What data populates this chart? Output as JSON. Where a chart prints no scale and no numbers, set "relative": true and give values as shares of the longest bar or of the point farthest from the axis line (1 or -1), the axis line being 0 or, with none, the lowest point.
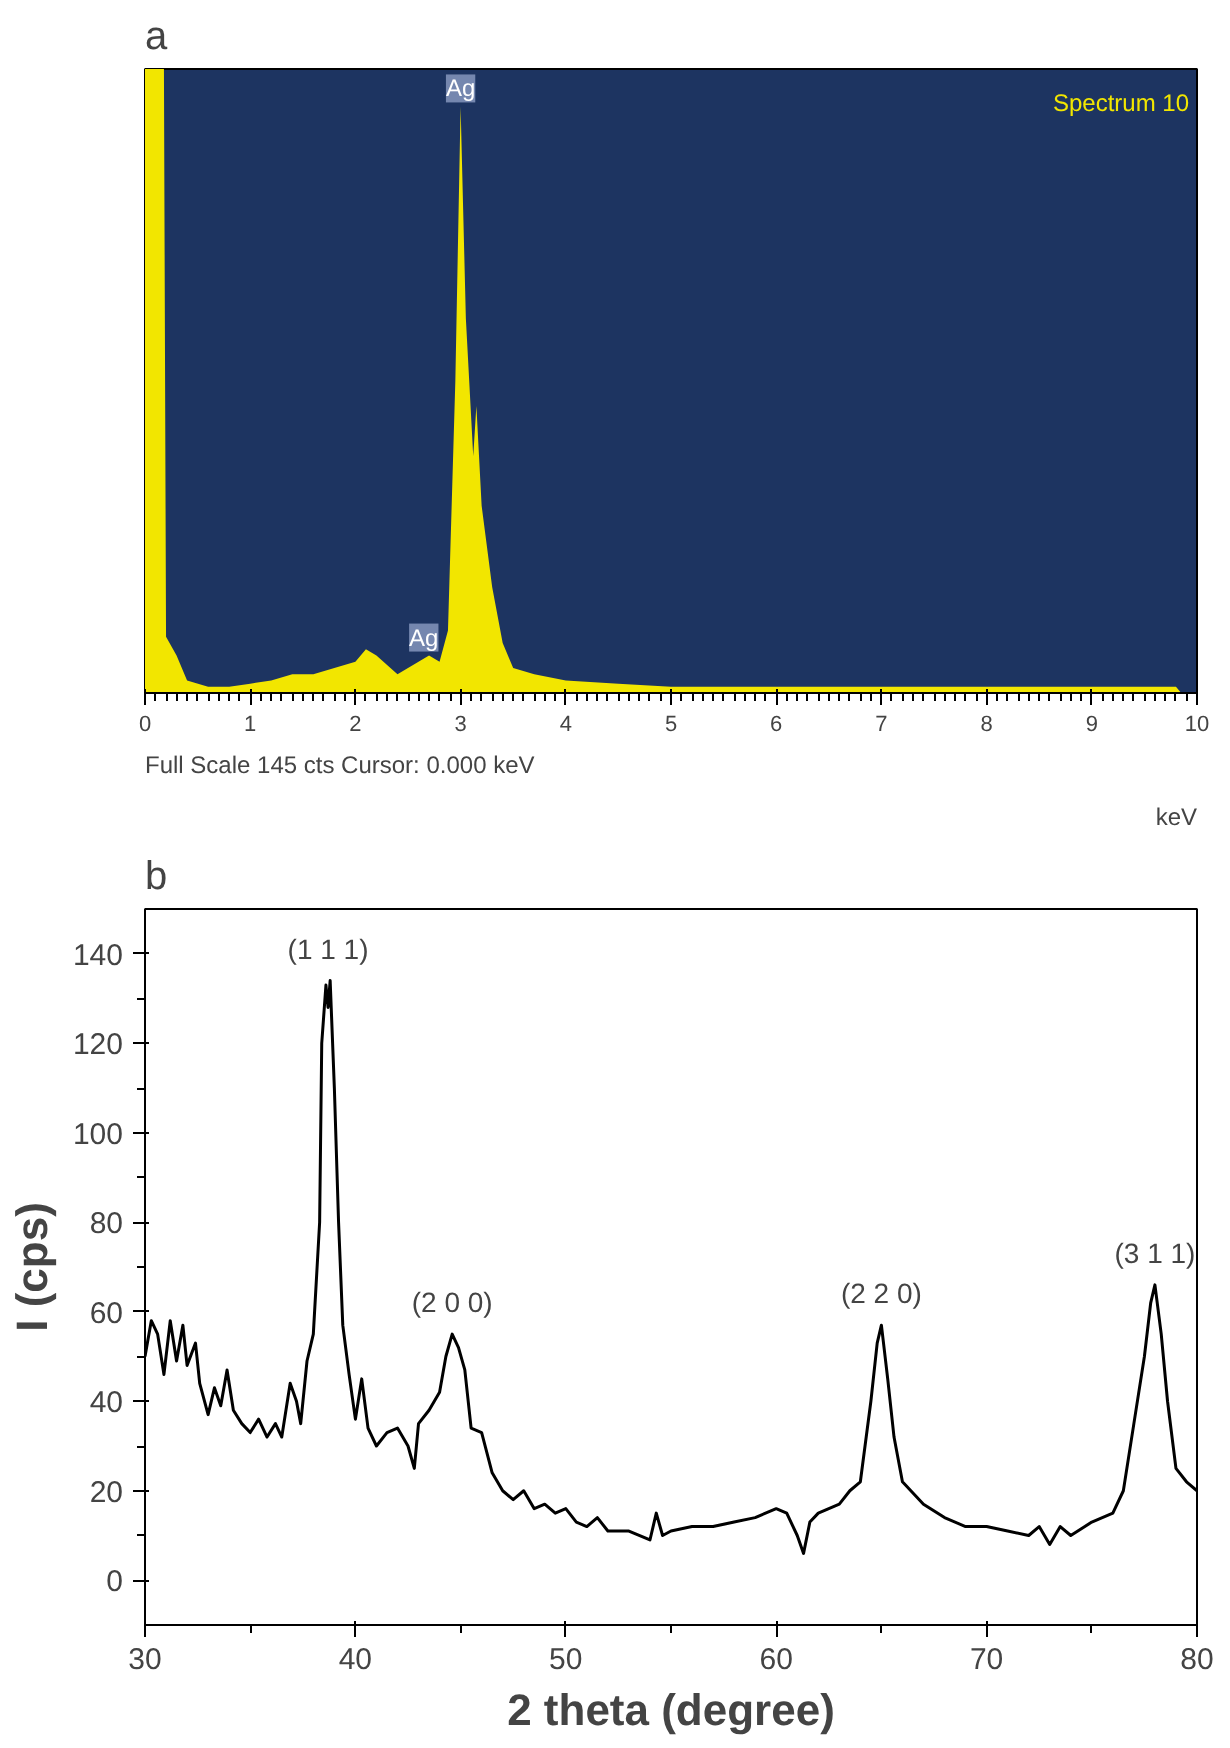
{
  "chart_data": [
    {
      "type": "area",
      "title": "a",
      "xlabel": "keV",
      "relative": true,
      "color": "#f2e600",
      "xlim": [
        0,
        10
      ],
      "xticks": [
        0,
        1,
        2,
        3,
        4,
        5,
        6,
        7,
        8,
        9,
        10
      ],
      "x": [
        0.0,
        0.18,
        0.2,
        0.3,
        0.4,
        0.6,
        0.8,
        1.0,
        1.2,
        1.4,
        1.6,
        1.8,
        2.0,
        2.1,
        2.2,
        2.4,
        2.6,
        2.7,
        2.8,
        2.88,
        2.95,
        3.0,
        3.05,
        3.12,
        3.15,
        3.2,
        3.3,
        3.4,
        3.5,
        3.7,
        4.0,
        4.5,
        5.0,
        6.0,
        7.0,
        8.0,
        9.0,
        9.8,
        9.85
      ],
      "values": [
        1,
        1,
        0.09,
        0.06,
        0.02,
        0.01,
        0.01,
        0.015,
        0.02,
        0.03,
        0.03,
        0.04,
        0.05,
        0.07,
        0.06,
        0.03,
        0.05,
        0.06,
        0.05,
        0.1,
        0.5,
        0.94,
        0.6,
        0.38,
        0.46,
        0.3,
        0.17,
        0.08,
        0.04,
        0.03,
        0.02,
        0.015,
        0.01,
        0.01,
        0.01,
        0.01,
        0.01,
        0.01,
        0
      ],
      "annotations": [
        {
          "text": "Ag",
          "x": 3.0,
          "y": 0.94
        },
        {
          "text": "Ag",
          "x": 2.65,
          "y": 0.06
        },
        "Spectrum 10",
        "Full Scale 145 cts  Cursor: 0.000 keV"
      ]
    },
    {
      "type": "line",
      "title": "b",
      "xlabel": "2 theta (degree)",
      "ylabel": "I (cps)",
      "color": "#000000",
      "xlim": [
        30,
        80
      ],
      "ylim": [
        -10,
        150
      ],
      "xticks": [
        30,
        40,
        50,
        60,
        70,
        80
      ],
      "yticks": [
        0,
        20,
        40,
        60,
        80,
        100,
        120,
        140
      ],
      "x": [
        30.0,
        30.3,
        30.6,
        30.9,
        31.2,
        31.5,
        31.8,
        32.0,
        32.4,
        32.6,
        33.0,
        33.3,
        33.6,
        33.9,
        34.2,
        34.6,
        35.0,
        35.4,
        35.8,
        36.2,
        36.5,
        36.9,
        37.2,
        37.4,
        37.7,
        38.0,
        38.3,
        38.4,
        38.6,
        38.7,
        38.8,
        39.0,
        39.2,
        39.4,
        39.7,
        40.0,
        40.3,
        40.6,
        41.0,
        41.5,
        42.0,
        42.5,
        42.8,
        43.0,
        43.5,
        44.0,
        44.3,
        44.6,
        44.9,
        45.2,
        45.5,
        46.0,
        46.5,
        47.0,
        47.5,
        48.0,
        48.5,
        49.0,
        49.5,
        50.0,
        50.5,
        51.0,
        51.5,
        52.0,
        53.0,
        54.0,
        54.3,
        54.6,
        55.0,
        56.0,
        57.0,
        58.0,
        59.0,
        60.0,
        60.5,
        61.0,
        61.3,
        61.6,
        62.0,
        63.0,
        63.5,
        64.0,
        64.5,
        64.8,
        65.0,
        65.3,
        65.6,
        66.0,
        67.0,
        68.0,
        69.0,
        70.0,
        71.0,
        72.0,
        72.5,
        73.0,
        73.5,
        74.0,
        75.0,
        76.0,
        76.5,
        77.0,
        77.5,
        77.8,
        78.0,
        78.3,
        78.6,
        79.0,
        79.5,
        80.0
      ],
      "values": [
        50,
        58,
        55,
        46,
        58,
        49,
        57,
        48,
        53,
        44,
        37,
        43,
        39,
        47,
        38,
        35,
        33,
        36,
        32,
        35,
        32,
        44,
        40,
        35,
        49,
        55,
        80,
        120,
        133,
        128,
        134,
        110,
        80,
        57,
        46,
        36,
        45,
        34,
        30,
        33,
        34,
        30,
        25,
        35,
        38,
        42,
        50,
        55,
        52,
        47,
        34,
        33,
        24,
        20,
        18,
        20,
        16,
        17,
        15,
        16,
        13,
        12,
        14,
        11,
        11,
        9,
        15,
        10,
        11,
        12,
        12,
        13,
        14,
        16,
        15,
        10,
        6,
        13,
        15,
        17,
        20,
        22,
        40,
        53,
        57,
        45,
        32,
        22,
        17,
        14,
        12,
        12,
        11,
        10,
        12,
        8,
        12,
        10,
        13,
        15,
        20,
        35,
        50,
        62,
        66,
        55,
        40,
        25,
        22,
        20
      ],
      "annotations": [
        {
          "text": "(1 1 1)",
          "x": 38.7,
          "y": 134
        },
        {
          "text": "(2 0 0)",
          "x": 44.6,
          "y": 55
        },
        {
          "text": "(2 2 0)",
          "x": 65.0,
          "y": 57
        },
        {
          "text": "(3 1 1)",
          "x": 78.0,
          "y": 66
        }
      ]
    }
  ]
}
